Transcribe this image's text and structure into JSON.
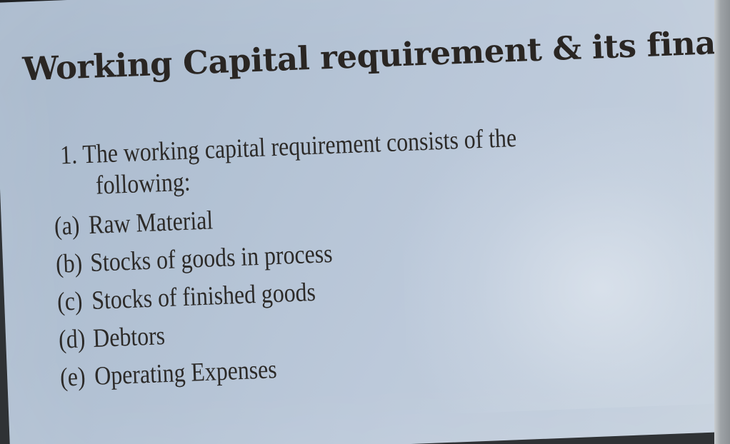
{
  "slide": {
    "title": "Working Capital requirement & its financing",
    "point": {
      "number": "1.",
      "text_line1": "The working capital requirement consists of the",
      "text_line2": "following:"
    },
    "items": [
      {
        "marker": "(a)",
        "text": "Raw Material"
      },
      {
        "marker": "(b)",
        "text": "Stocks of goods in process"
      },
      {
        "marker": "(c)",
        "text": "Stocks of finished goods"
      },
      {
        "marker": "(d)",
        "text": "Debtors"
      },
      {
        "marker": "(e)",
        "text": "Operating Expenses"
      }
    ]
  }
}
